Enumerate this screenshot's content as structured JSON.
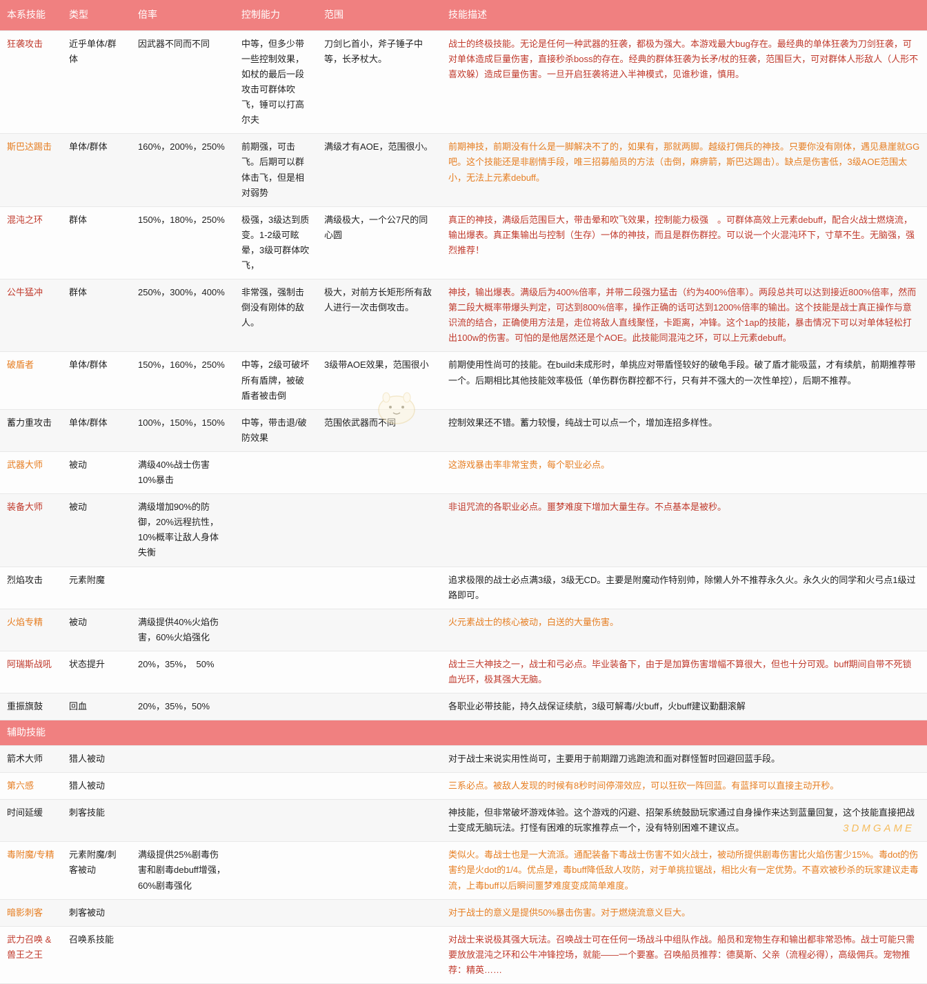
{
  "headers": [
    "本系技能",
    "类型",
    "倍率",
    "控制能力",
    "范围",
    "技能描述"
  ],
  "section2_label": "辅助技能",
  "watermark": "3DMGAME",
  "colors": {
    "header_bg": "#f08080",
    "red": "#c0392b",
    "orange": "#e67e22",
    "black": "#222",
    "blue": "#2a6496"
  },
  "rows1": [
    {
      "name": "狂袭攻击",
      "name_c": "c-red",
      "type": "近乎单体/群体",
      "rate": "因武器不同而不同",
      "ctrl": "中等，但多少带一些控制效果，如杖的最后一段攻击可群体吹飞，锤可以打高尔夫",
      "range": "刀剑匕首小，斧子锤子中等，长矛杖大。",
      "desc": "战士的终极技能。无论是任何一种武器的狂袭，都极为强大。本游戏最大bug存在。最经典的单体狂袭为刀剑狂袭，可对单体造成巨量伤害，直接秒杀boss的存在。经典的群体狂袭为长矛/杖的狂袭，范围巨大，可对群体人形敌人（人形不喜欢躲）造成巨量伤害。一旦开启狂袭将进入半神模式，见谁秒谁，慎用。",
      "desc_c": "c-red"
    },
    {
      "name": "斯巴达踢击",
      "name_c": "c-orange",
      "type": "单体/群体",
      "rate": "160%，200%，250%",
      "ctrl": "前期强，可击飞。后期可以群体击飞，但是相对弱势",
      "range": "满级才有AOE，范围很小。",
      "desc": "前期神技，前期没有什么是一脚解决不了的，如果有，那就两脚。越级打佣兵的神技。只要你没有刚体，遇见悬崖就GG吧。这个技能还是非剧情手段，唯三招募船员的方法（击倒，麻痹箭，斯巴达踢击）。缺点是伤害低，3级AOE范围太小，无法上元素debuff。",
      "desc_c": "c-orange"
    },
    {
      "name": "混沌之环",
      "name_c": "c-red",
      "type": "群体",
      "rate": "150%，180%，250%",
      "ctrl": "极强，3级达到质变。1-2级可眩晕，3级可群体吹飞，",
      "range": "满级极大，一个公7尺的同心圆",
      "desc": "真正的神技，满级后范围巨大，带击晕和吹飞效果，控制能力极强　。可群体高效上元素debuff，配合火战士燃烧流，输出爆表。真正集输出与控制（生存）一体的神技，而且是群伤群控。可以说一个火混沌环下，寸草不生。无脑强，强烈推荐！",
      "desc_c": "c-red"
    },
    {
      "name": "公牛猛冲",
      "name_c": "c-red",
      "type": "群体",
      "rate": "250%，300%，400%",
      "ctrl": "非常强，强制击倒没有刚体的敌人。",
      "range": "极大，对前方长矩形所有敌人进行一次击倒攻击。",
      "desc": "神技，输出爆表。满级后为400%倍率，并带二段强力猛击（约为400%倍率）。两段总共可以达到接近800%倍率，然而第二段大概率带爆头判定，可达到800%倍率，操作正确的话可达到1200%倍率的输出。这个技能是战士真正操作与意识流的结合，正确使用方法是，走位将敌人直线聚怪，卡距离，冲锋。这个1ap的技能，暴击情况下可以对单体轻松打出100w的伤害。可怕的是他居然还是个AOE。此技能同混沌之环，可以上元素debuff。",
      "desc_c": "c-red"
    },
    {
      "name": "破盾者",
      "name_c": "c-orange",
      "type": "单体/群体",
      "rate": "150%，160%，250%",
      "ctrl": "中等，2级可破坏所有盾牌，被破盾者被击倒",
      "range": "3级带AOE效果，范围很小",
      "desc": "前期使用性尚可的技能。在build未成形时，单挑应对带盾怪较好的破龟手段。破了盾才能吸蓝，才有续航，前期推荐带一个。后期相比其他技能效率极低（单伤群伤群控都不行，只有并不强大的一次性单控），后期不推荐。",
      "desc_c": "c-black"
    },
    {
      "name": "蓄力重攻击",
      "name_c": "c-black",
      "type": "单体/群体",
      "rate": "100%，150%，150%",
      "ctrl": "中等，带击退/破防效果",
      "range": "范围依武器而不同",
      "desc": "控制效果还不错。蓄力较慢，纯战士可以点一个，增加连招多样性。",
      "desc_c": "c-black"
    },
    {
      "name": "武器大师",
      "name_c": "c-orange",
      "type": "被动",
      "rate": "满级40%战士伤害10%暴击",
      "ctrl": "",
      "range": "",
      "desc": "这游戏暴击率非常宝贵，每个职业必点。",
      "desc_c": "c-orange"
    },
    {
      "name": "装备大师",
      "name_c": "c-red",
      "type": "被动",
      "rate": "满级增加90%的防御，20%远程抗性，10%概率让敌人身体失衡",
      "ctrl": "",
      "range": "",
      "desc": "非诅咒流的各职业必点。噩梦难度下增加大量生存。不点基本是被秒。",
      "desc_c": "c-red"
    },
    {
      "name": "烈焰攻击",
      "name_c": "c-black",
      "type": "元素附魔",
      "rate": "",
      "ctrl": "",
      "range": "",
      "desc": "追求极限的战士必点满3级，3级无CD。主要是附魔动作特别帅，除懒人外不推荐永久火。永久火的同学和火弓点1级过路即可。",
      "desc_c": "c-black"
    },
    {
      "name": "火焰专精",
      "name_c": "c-orange",
      "type": "被动",
      "rate": "满级提供40%火焰伤害，60%火焰强化",
      "ctrl": "",
      "range": "",
      "desc": "火元素战士的核心被动，白送的大量伤害。",
      "desc_c": "c-orange"
    },
    {
      "name": "阿瑞斯战吼",
      "name_c": "c-red",
      "type": "状态提升",
      "rate": "20%，35%，　50%",
      "ctrl": "",
      "range": "",
      "desc": "战士三大神技之一，战士和弓必点。毕业装备下，由于是加算伤害增幅不算很大，但也十分可观。buff期间自带不死锁血光环，极其强大无脑。",
      "desc_c": "c-red"
    },
    {
      "name": "重振旗鼓",
      "name_c": "c-black",
      "type": "回血",
      "rate": "20%，35%，50%",
      "ctrl": "",
      "range": "",
      "desc": "各职业必带技能，持久战保证续航，3级可解毒/火buff，火buff建议勤翻滚解",
      "desc_c": "c-black"
    }
  ],
  "rows2": [
    {
      "name": "箭术大师",
      "name_c": "c-black",
      "type": "猎人被动",
      "rate": "",
      "ctrl": "",
      "range": "",
      "desc": "对于战士来说实用性尚可，主要用于前期蹭刀逃跑流和面对群怪暂时回避回蓝手段。",
      "desc_c": "c-black"
    },
    {
      "name": "第六感",
      "name_c": "c-orange",
      "type": "猎人被动",
      "rate": "",
      "ctrl": "",
      "range": "",
      "desc": "三系必点。被敌人发现的时候有8秒时间停滞效应，可以狂砍一阵回蓝。有蓝择可以直接主动开秒。",
      "desc_c": "c-orange"
    },
    {
      "name": "时间延缓",
      "name_c": "c-black",
      "type": "刺客技能",
      "rate": "",
      "ctrl": "",
      "range": "",
      "desc": "神技能，但非常破坏游戏体验。这个游戏的闪避、招架系统鼓励玩家通过自身操作来达到蓝量回复，这个技能直接把战士变成无脑玩法。打怪有困难的玩家推荐点一个，没有特别困难不建议点。",
      "desc_c": "c-black"
    },
    {
      "name": "毒附魔/专精",
      "name_c": "c-orange",
      "type": "元素附魔/刺客被动",
      "rate": "满级提供25%剧毒伤害和剧毒debuff增强，60%剧毒强化",
      "ctrl": "",
      "range": "",
      "desc": "类似火。毒战士也是一大流派。通配装备下毒战士伤害不如火战士，被动所提供剧毒伤害比火焰伤害少15%。毒dot的伤害约是火dot的1/4。优点是，毒buff降低敌人攻防，对于单挑拉锯战，相比火有一定优势。不喜欢被秒杀的玩家建议走毒流，上毒buff以后瞬间噩梦难度变成简单难度。",
      "desc_c": "c-orange"
    },
    {
      "name": "暗影刺客",
      "name_c": "c-orange",
      "type": "刺客被动",
      "rate": "",
      "ctrl": "",
      "range": "",
      "desc": "对于战士的意义是提供50%暴击伤害。对于燃烧流意义巨大。",
      "desc_c": "c-orange"
    },
    {
      "name": "武力召唤 & 兽王之王",
      "name_c": "c-red",
      "type": "召唤系技能",
      "rate": "",
      "ctrl": "",
      "range": "",
      "desc": "对战士来说极其强大玩法。召唤战士可在任何一场战斗中组队作战。船员和宠物生存和输出都非常恐怖。战士可能只需要放放混沌之环和公牛冲锋控场，就能——一个要塞。召唤船员推荐：德莫斯、父亲（流程必得），高级佣兵。宠物推荐：精英……",
      "desc_c": "c-red"
    }
  ]
}
